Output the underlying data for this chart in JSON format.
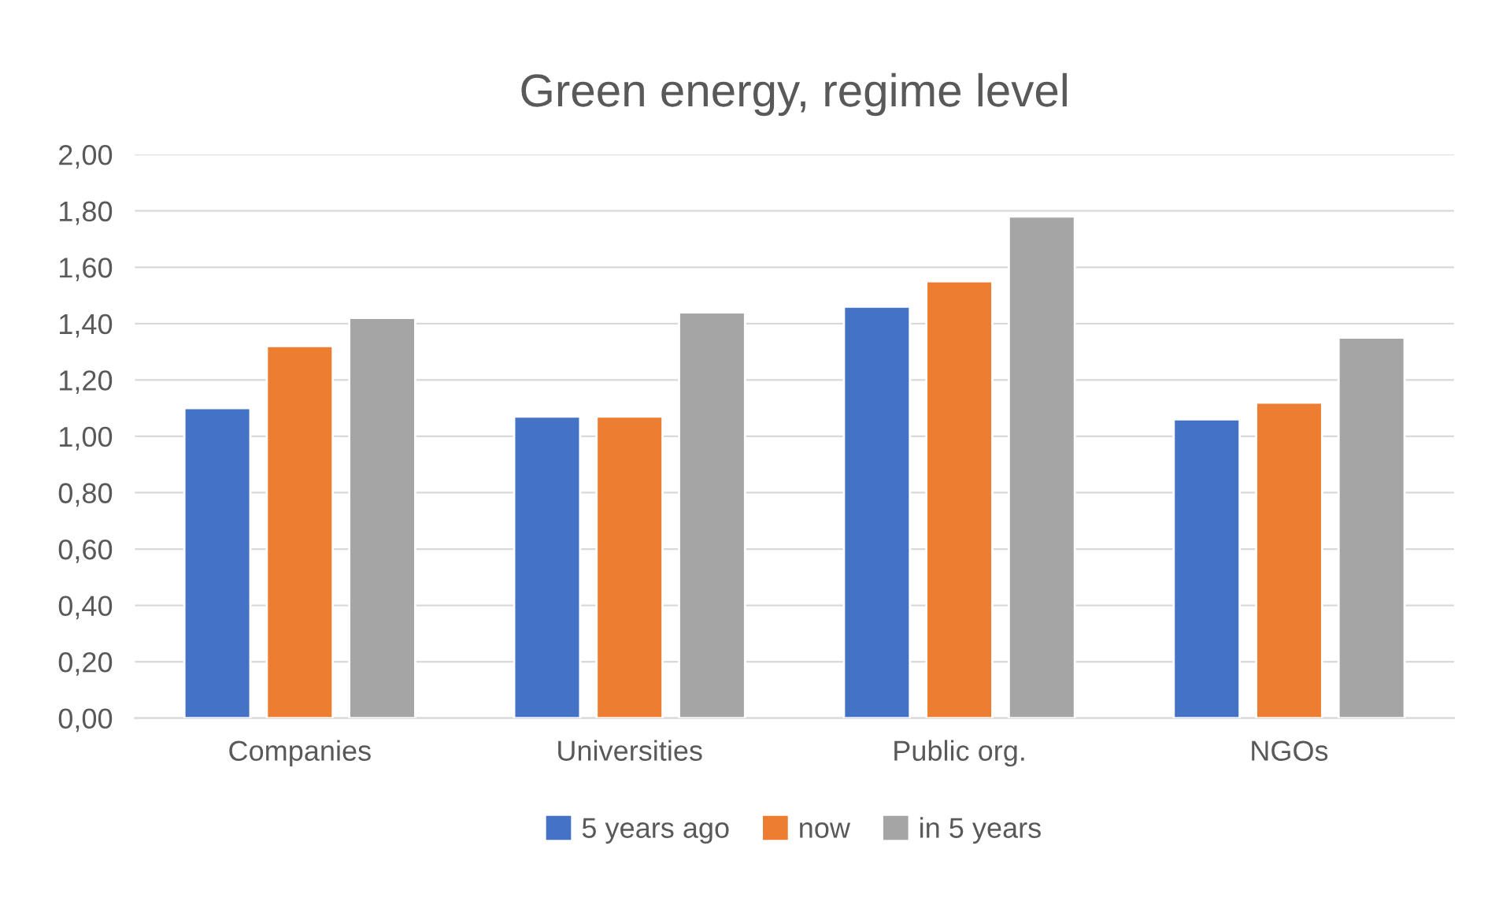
{
  "chart_data": {
    "type": "bar",
    "title": "Green energy, regime level",
    "categories": [
      "Companies",
      "Universities",
      "Public org.",
      "NGOs"
    ],
    "series": [
      {
        "name": "5 years ago",
        "color": "#4472c4",
        "values": [
          1.1,
          1.07,
          1.46,
          1.06
        ]
      },
      {
        "name": "now",
        "color": "#ed7d31",
        "values": [
          1.32,
          1.07,
          1.55,
          1.12
        ]
      },
      {
        "name": "in 5 years",
        "color": "#a5a5a5",
        "values": [
          1.42,
          1.44,
          1.78,
          1.35
        ]
      }
    ],
    "ylim": [
      0,
      2
    ],
    "yticks": [
      {
        "value": 0,
        "label": "0,00"
      },
      {
        "value": 0.2,
        "label": "0,20"
      },
      {
        "value": 0.4,
        "label": "0,40"
      },
      {
        "value": 0.6,
        "label": "0,60"
      },
      {
        "value": 0.8,
        "label": "0,80"
      },
      {
        "value": 1.0,
        "label": "1,00"
      },
      {
        "value": 1.2,
        "label": "1,20"
      },
      {
        "value": 1.4,
        "label": "1,40"
      },
      {
        "value": 1.6,
        "label": "1,60"
      },
      {
        "value": 1.8,
        "label": "1,80"
      },
      {
        "value": 2.0,
        "label": "2,00"
      }
    ],
    "grid": "y",
    "legend": "bottom"
  }
}
